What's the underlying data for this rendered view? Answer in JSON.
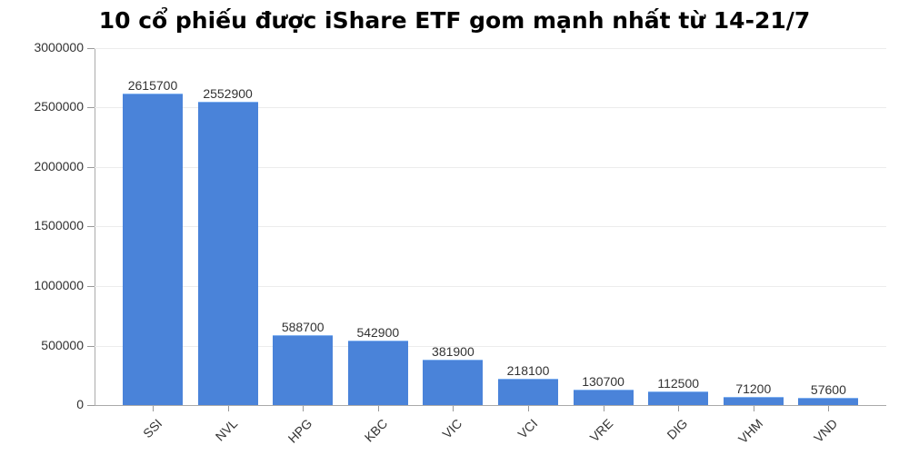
{
  "title": "10 cổ phiếu được iShare ETF gom mạnh nhất từ 14-21/7",
  "colors": {
    "bar": "#4a83d9",
    "grid": "#ececec",
    "axis": "#aaaaaa"
  },
  "y_ticks": [
    "3000000",
    "2500000",
    "2000000",
    "1500000",
    "1000000",
    "500000",
    "0"
  ],
  "bars": [
    {
      "label": "SSI",
      "value": "2615700"
    },
    {
      "label": "NVL",
      "value": "2552900"
    },
    {
      "label": "HPG",
      "value": "588700"
    },
    {
      "label": "KBC",
      "value": "542900"
    },
    {
      "label": "VIC",
      "value": "381900"
    },
    {
      "label": "VCI",
      "value": "218100"
    },
    {
      "label": "VRE",
      "value": "130700"
    },
    {
      "label": "DIG",
      "value": "112500"
    },
    {
      "label": "VHM",
      "value": "71200"
    },
    {
      "label": "VND",
      "value": "57600"
    }
  ],
  "chart_data": {
    "type": "bar",
    "title": "10 cổ phiếu được iShare ETF gom mạnh nhất từ 14-21/7",
    "categories": [
      "SSI",
      "NVL",
      "HPG",
      "KBC",
      "VIC",
      "VCI",
      "VRE",
      "DIG",
      "VHM",
      "VND"
    ],
    "values": [
      2615700,
      2552900,
      588700,
      542900,
      381900,
      218100,
      130700,
      112500,
      71200,
      57600
    ],
    "xlabel": "",
    "ylabel": "",
    "ylim": [
      0,
      3000000
    ],
    "yticks": [
      0,
      500000,
      1000000,
      1500000,
      2000000,
      2500000,
      3000000
    ],
    "grid": true,
    "legend": null,
    "data_labels": true
  }
}
